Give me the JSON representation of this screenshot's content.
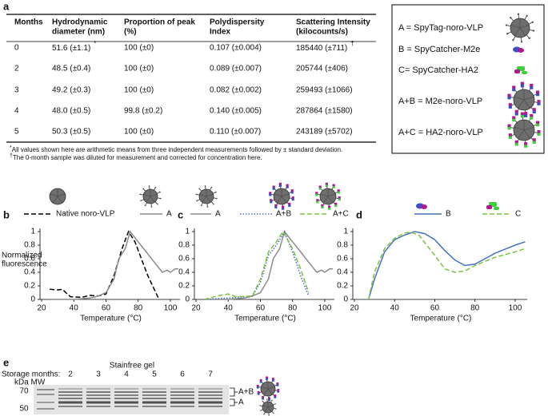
{
  "table": {
    "label": "a",
    "header": [
      [
        "Months"
      ],
      [
        "Hydrodynamic",
        "diameter (nm)"
      ],
      [
        "Proportion of peak",
        "(%)"
      ],
      [
        "Polydispersity",
        "Index"
      ],
      [
        "Scattering Intensity",
        "(kilocounts/s)"
      ]
    ],
    "rows": [
      [
        "0",
        {
          "text": "51.6 (±1.1)",
          "mark": "*"
        },
        "100 (±0)",
        "0.107 (±0.004)",
        {
          "text": "185440 (±711)",
          "mark": "†"
        }
      ],
      [
        "2",
        "48.5 (±0.4)",
        "100 (±0)",
        "0.089 (±0.007)",
        "205744 (±406)"
      ],
      [
        "3",
        "49.2 (±0.3)",
        "100 (±0)",
        "0.082 (±0.002)",
        "259493 (±1066)"
      ],
      [
        "4",
        "48.0 (±0.5)",
        "99.8 (±0.2)",
        "0.140 (±0.005)",
        "287864 (±1580)"
      ],
      [
        "5",
        "50.3 (±0.5)",
        "100 (±0)",
        "0.110 (±0.007)",
        "243189 (±5702)"
      ]
    ],
    "footnotes": [
      {
        "mark": "*",
        "text": "All values shown here are arithmetic means from three independent measurements followed by ± standard deviation."
      },
      {
        "mark": "†",
        "text": "The 0-month sample was diluted for measurement and corrected for concentration here."
      }
    ]
  },
  "key": [
    "A = SpyTag-noro-VLP",
    "B = SpyCatcher-M2e",
    "C= SpyCatcher-HA2",
    "A+B = M2e-noro-VLP",
    "A+C = HA2-noro-VLP"
  ],
  "chart_data": [
    {
      "type": "line",
      "label": "b",
      "xlabel": "Temperature (°C)",
      "ylabel": [
        "Normalized",
        "fluorescence"
      ],
      "xlim": [
        20,
        106
      ],
      "xticks": [
        20,
        40,
        60,
        80,
        100
      ],
      "ylim": [
        0,
        1
      ],
      "yticks": [
        0,
        0.2,
        0.4,
        0.6,
        0.8,
        1
      ],
      "series": [
        {
          "name": "Native noro-VLP",
          "color": "#000000",
          "dash": "dashed",
          "x": [
            25,
            30,
            33,
            35,
            38,
            45,
            50,
            55,
            60,
            65,
            70,
            74,
            78,
            82,
            86,
            90,
            93
          ],
          "values": [
            0.15,
            0.14,
            0.15,
            0.1,
            0.04,
            0.03,
            0.06,
            0.05,
            0.08,
            0.35,
            0.75,
            1.0,
            0.85,
            0.6,
            0.35,
            0.15,
            0
          ]
        },
        {
          "name": "A",
          "color": "#8a8a8a",
          "dash": "solid",
          "x": [
            25,
            40,
            50,
            55,
            60,
            65,
            68,
            72,
            75,
            80,
            85,
            90,
            95,
            98,
            100,
            103,
            105
          ],
          "values": [
            0,
            0,
            0.02,
            0.05,
            0.1,
            0.3,
            0.6,
            0.75,
            1.0,
            0.85,
            0.7,
            0.55,
            0.4,
            0.43,
            0.4,
            0.45,
            0.45
          ]
        }
      ]
    },
    {
      "type": "line",
      "label": "c",
      "xlabel": "Temperature (°C)",
      "xlim": [
        20,
        106
      ],
      "xticks": [
        20,
        40,
        60,
        80,
        100
      ],
      "ylim": [
        0,
        1
      ],
      "yticks": [
        0,
        0.2,
        0.4,
        0.6,
        0.8,
        1
      ],
      "series": [
        {
          "name": "A",
          "color": "#8a8a8a",
          "dash": "solid",
          "x": [
            25,
            40,
            50,
            55,
            60,
            65,
            68,
            72,
            75,
            80,
            85,
            90,
            95,
            98,
            100,
            103,
            105
          ],
          "values": [
            0,
            0,
            0.02,
            0.05,
            0.1,
            0.3,
            0.6,
            0.75,
            1.0,
            0.85,
            0.7,
            0.55,
            0.4,
            0.43,
            0.4,
            0.45,
            0.45
          ]
        },
        {
          "name": "A+B",
          "color": "#4472c4",
          "dash": "dotted",
          "x": [
            25,
            40,
            55,
            60,
            65,
            70,
            75,
            80,
            85,
            90
          ],
          "values": [
            0,
            0.02,
            0.05,
            0.25,
            0.65,
            0.8,
            1.0,
            0.7,
            0.35,
            0.05
          ]
        },
        {
          "name": "A+C",
          "color": "#7dc242",
          "dash": "dashed",
          "x": [
            25,
            35,
            40,
            45,
            55,
            60,
            65,
            70,
            74,
            80,
            85,
            90
          ],
          "values": [
            0,
            0.06,
            0.08,
            0.04,
            0.05,
            0.3,
            0.7,
            0.85,
            1.0,
            0.75,
            0.45,
            0.1
          ]
        }
      ]
    },
    {
      "type": "line",
      "label": "d",
      "xlabel": "Temperature (°C)",
      "xlim": [
        20,
        106
      ],
      "xticks": [
        20,
        40,
        60,
        80,
        100
      ],
      "ylim": [
        0,
        1
      ],
      "yticks": [
        0,
        0.2,
        0.4,
        0.6,
        0.8,
        1
      ],
      "series": [
        {
          "name": "B",
          "color": "#4472c4",
          "dash": "solid",
          "x": [
            27,
            30,
            35,
            40,
            45,
            50,
            55,
            60,
            65,
            70,
            75,
            80,
            85,
            90,
            95,
            100,
            105
          ],
          "values": [
            0,
            0.3,
            0.7,
            0.88,
            0.95,
            1.0,
            0.97,
            0.88,
            0.72,
            0.58,
            0.5,
            0.52,
            0.6,
            0.68,
            0.74,
            0.8,
            0.85
          ]
        },
        {
          "name": "C",
          "color": "#7dc242",
          "dash": "dashed",
          "x": [
            27,
            30,
            35,
            40,
            45,
            48,
            52,
            60,
            65,
            70,
            75,
            80,
            90,
            100,
            105
          ],
          "values": [
            0,
            0.4,
            0.75,
            0.9,
            0.98,
            0.99,
            0.95,
            0.65,
            0.45,
            0.4,
            0.42,
            0.5,
            0.62,
            0.7,
            0.75
          ]
        }
      ]
    }
  ],
  "gel": {
    "label": "e",
    "title": "Stainfree gel",
    "lanes_heading": "Storage months:",
    "mw_heading": "kDa MW",
    "lanes": [
      "2",
      "3",
      "4",
      "5",
      "6",
      "7"
    ],
    "mw_labels": [
      "70",
      "50"
    ],
    "bands": [
      "A+B",
      "A"
    ]
  }
}
